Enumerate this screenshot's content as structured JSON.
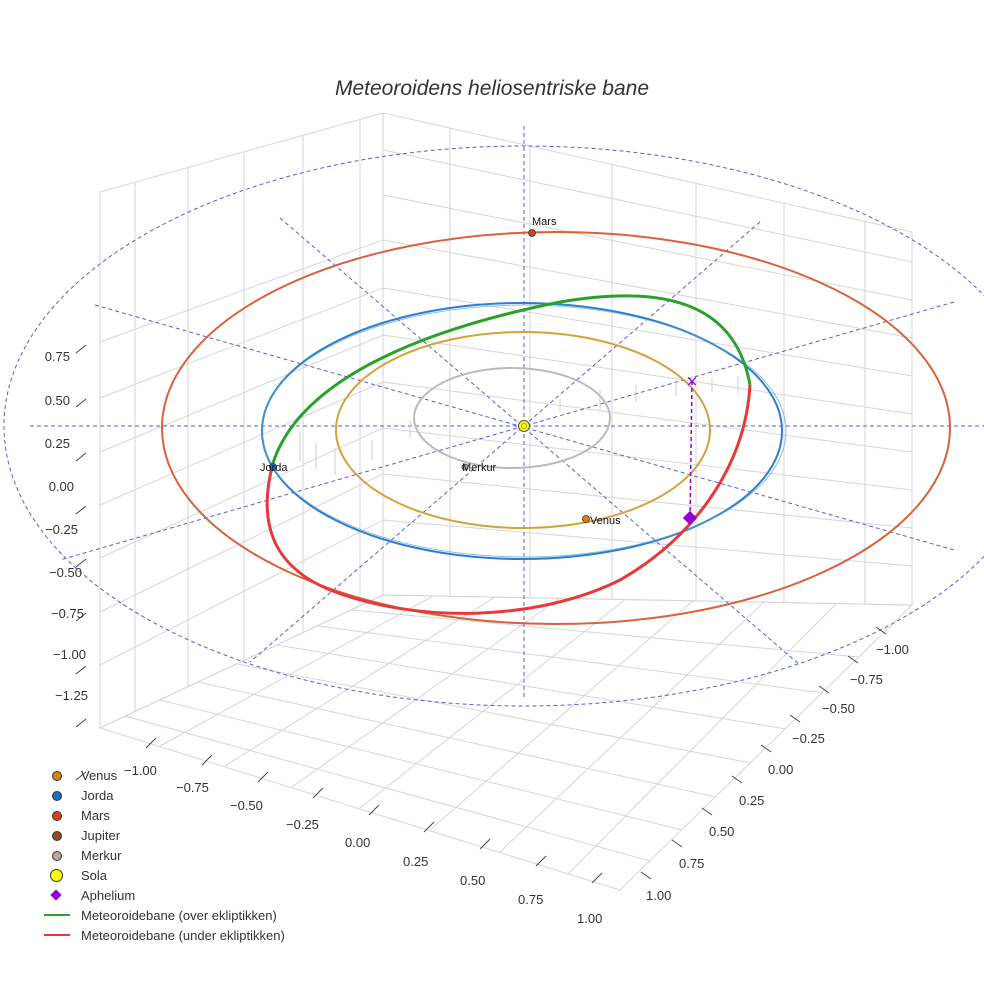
{
  "chart_data": {
    "type": "scatter",
    "title": "Meteoroidens heliosentriske bane",
    "xlabel": "",
    "ylabel": "",
    "zlabel": "",
    "x_axis_ticks": [
      "−1.00",
      "−0.75",
      "−0.50",
      "−0.25",
      "0.00",
      "0.25",
      "0.50",
      "0.75",
      "1.00"
    ],
    "y_axis_ticks": [
      "−1.00",
      "−0.75",
      "−0.50",
      "−0.25",
      "0.00",
      "0.25",
      "0.50",
      "0.75",
      "1.00"
    ],
    "z_axis_ticks": [
      "0.75",
      "0.50",
      "0.25",
      "0.00",
      "−0.25",
      "−0.50",
      "−0.75",
      "−1.00",
      "−1.25"
    ],
    "grid": true,
    "legend_position": "bottom-left",
    "planets": [
      {
        "name": "Venus",
        "label": "Venus",
        "orbit_radius_au": 0.723,
        "position": [
          0.58,
          -0.45,
          0.0
        ],
        "color": "#d97f1c",
        "orbit_color": "#d4a13b"
      },
      {
        "name": "Jorda",
        "label": "Jorda",
        "orbit_radius_au": 1.0,
        "position": [
          -1.0,
          -0.14,
          0.0
        ],
        "color": "#1f6fc2",
        "orbit_color": "#2d7dd2"
      },
      {
        "name": "Mars",
        "label": "Mars",
        "orbit_radius_au": 1.524,
        "position": [
          0.02,
          1.52,
          0.0
        ],
        "color": "#d9401b",
        "orbit_color": "#d8623b"
      },
      {
        "name": "Jupiter",
        "label": "",
        "orbit_radius_au": null,
        "position": null,
        "color": "#8f4e2a",
        "orbit_color": null
      },
      {
        "name": "Merkur",
        "label": "Merkur",
        "orbit_radius_au": 0.387,
        "position": [
          -0.24,
          -0.3,
          0.0
        ],
        "color": "#b7a7a1",
        "orbit_color": "#bbbbbb"
      }
    ],
    "sun": {
      "name": "Sola",
      "position": [
        0,
        0,
        0
      ],
      "color": "#ffff00"
    },
    "aphelion": {
      "name": "Aphelium",
      "position": [
        0.9,
        -0.6,
        -0.45
      ],
      "projection": [
        0.9,
        -0.6,
        0.0
      ],
      "color": "#9400d3"
    },
    "meteoroid_orbit_above": {
      "name": "Meteoroidebane (over ekliptikken)",
      "color": "#2ca02c"
    },
    "meteoroid_orbit_below": {
      "name": "Meteoroidebane (under ekliptikken)",
      "color": "#e8383a"
    },
    "ecliptic_reference": {
      "color": "#5b5bdb",
      "style": "dashed",
      "outer_radius_au": 2.0
    }
  },
  "legend": {
    "items": [
      {
        "label": "Venus",
        "kind": "dot",
        "color": "#d97f1c"
      },
      {
        "label": "Jorda",
        "kind": "dot",
        "color": "#1f6fc2"
      },
      {
        "label": "Mars",
        "kind": "dot",
        "color": "#d9401b"
      },
      {
        "label": "Jupiter",
        "kind": "dot",
        "color": "#8f4e2a"
      },
      {
        "label": "Merkur",
        "kind": "dot",
        "color": "#b7a7a1"
      },
      {
        "label": "Sola",
        "kind": "big-dot",
        "color": "#ffff00"
      },
      {
        "label": "Aphelium",
        "kind": "diamond",
        "color": "#9400d3"
      },
      {
        "label": "Meteoroidebane (over ekliptikken)",
        "kind": "line",
        "color": "#2ca02c"
      },
      {
        "label": "Meteoroidebane (under ekliptikken)",
        "kind": "line",
        "color": "#e8383a"
      }
    ]
  }
}
